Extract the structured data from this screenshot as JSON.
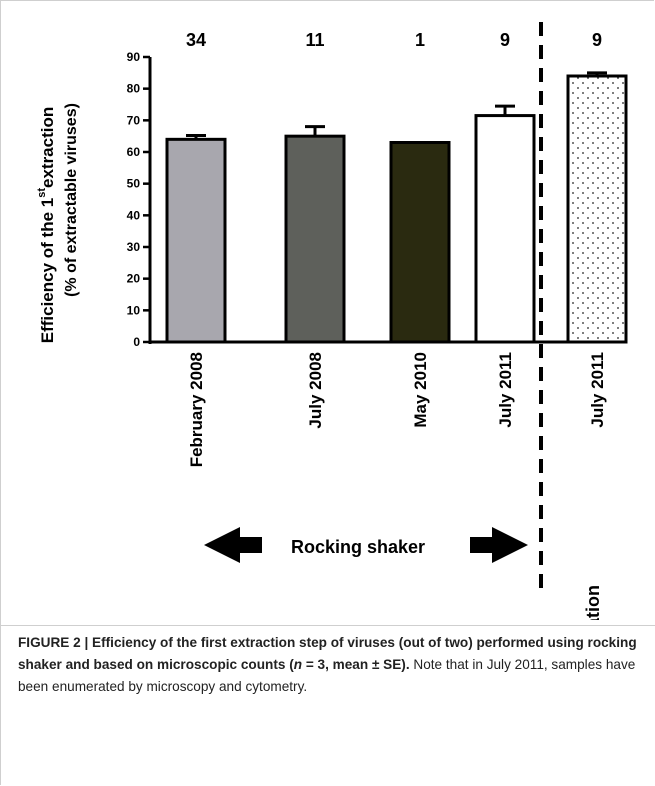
{
  "chart_data": {
    "type": "bar",
    "title": "",
    "ylabel": "Efficiency of the 1st extraction (% of extractable viruses)",
    "ylabel_line1": "Efficiency  of  the  1",
    "ylabel_sup": "st",
    "ylabel_line1_end": "extraction",
    "ylabel_line2": "(% of extractable viruses)",
    "ylim": [
      0,
      90
    ],
    "yticks": [
      "0",
      "10",
      "20",
      "30",
      "40",
      "50",
      "60",
      "70",
      "80",
      "90"
    ],
    "categories": [
      "February 2008",
      "July 2008",
      "May 2010",
      "July 2011",
      "July 2011"
    ],
    "values": [
      64,
      65,
      63,
      71.5,
      84
    ],
    "errors": [
      1.2,
      3,
      0,
      3,
      1
    ],
    "counts": [
      "34",
      "11",
      "1",
      "9",
      "9"
    ],
    "bar_fills": [
      "#a8a7ae",
      "#5e605b",
      "#2a2a10",
      "#ffffff",
      "dots"
    ],
    "groups": {
      "rocking_label": "Rocking shaker",
      "sonication_label": "Sonication"
    },
    "grid": false
  },
  "caption": {
    "bold_text": "FIGURE 2 | Efficiency of the first extraction step of viruses (out of two) performed using rocking shaker and based on microscopic counts (",
    "n_label": "n",
    "bold_end": " = 3, mean ± SE).",
    "normal_text": " Note that in July 2011, samples have been enumerated by microscopy and cytometry."
  }
}
